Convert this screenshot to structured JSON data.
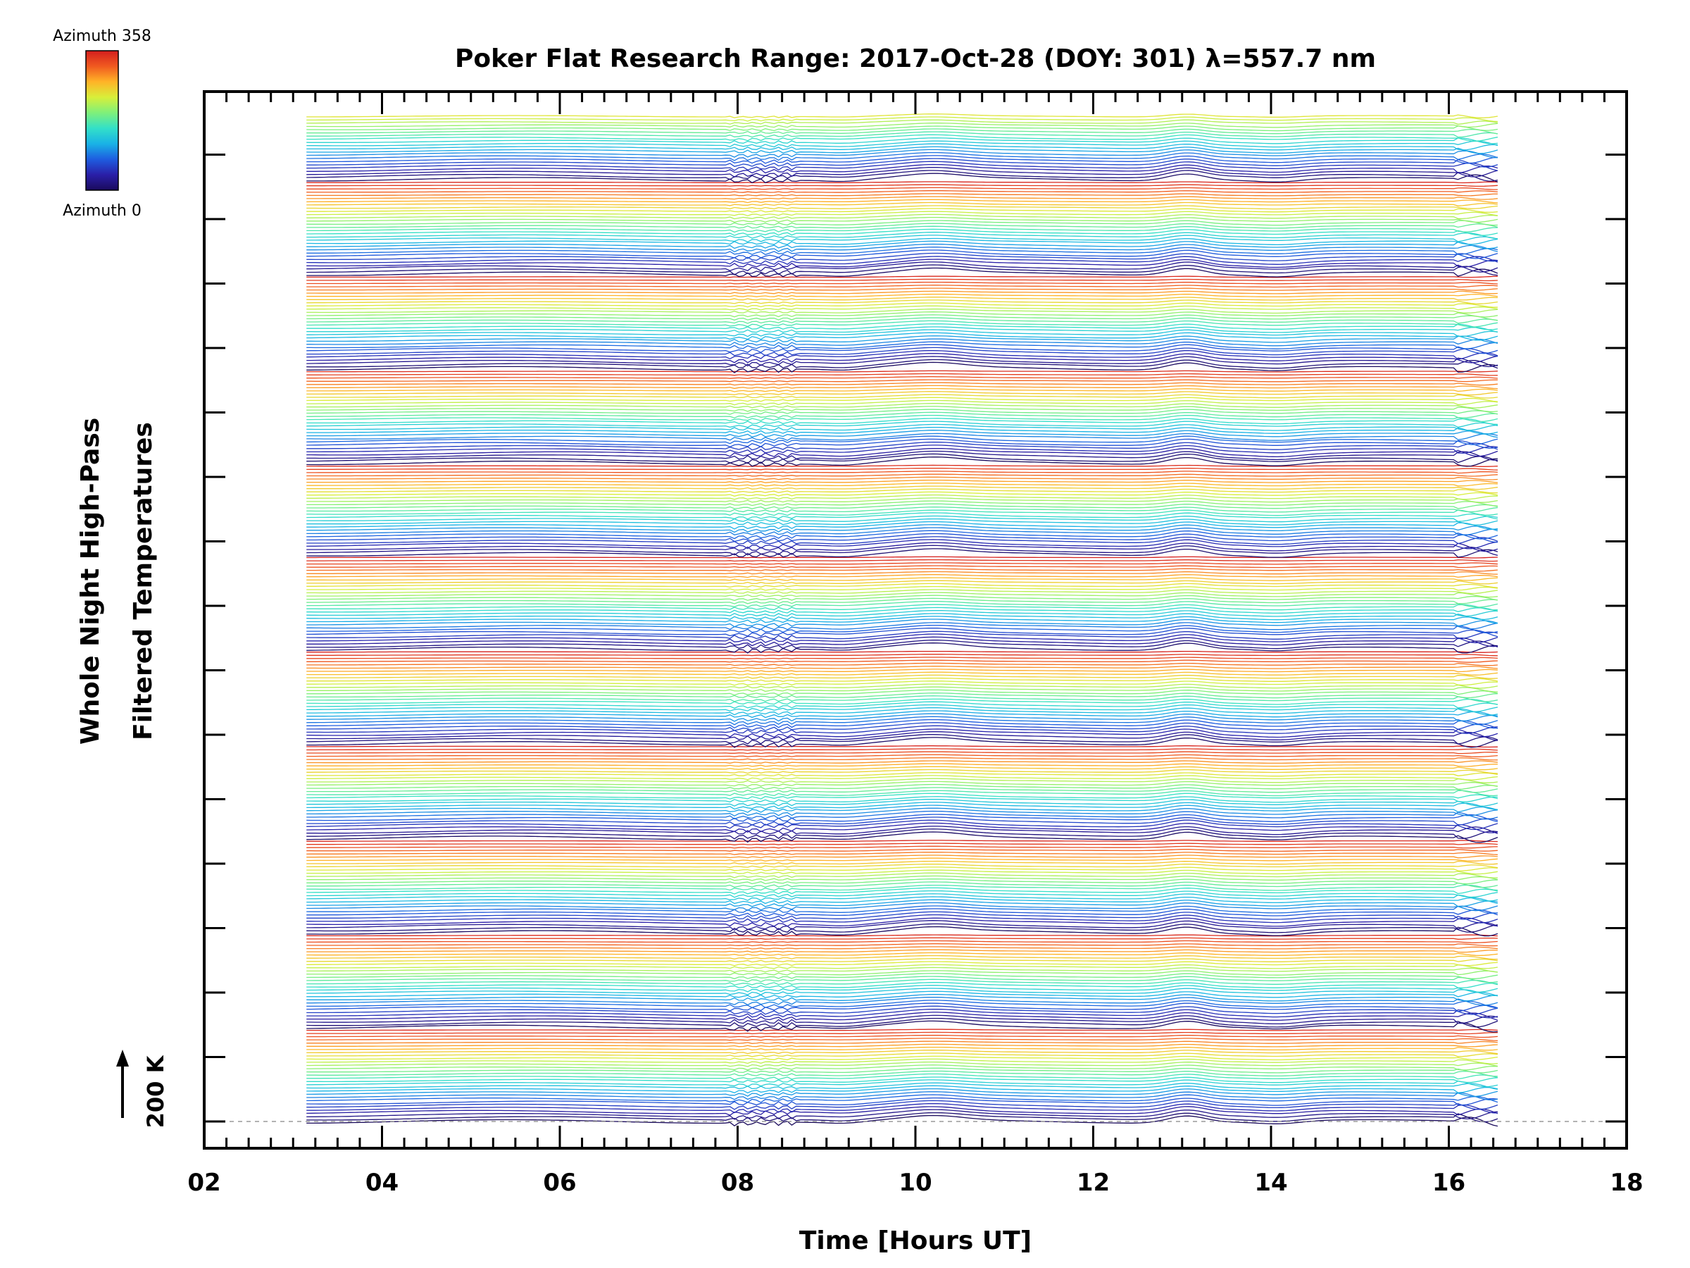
{
  "chart_data": {
    "type": "line",
    "title": "Poker Flat Research Range: 2017-Oct-28 (DOY: 301) λ=557.7 nm",
    "xlabel": "Time [Hours UT]",
    "ylabel_line1": "Whole Night High-Pass",
    "ylabel_line2": "Filtered Temperatures",
    "xlim": [
      2,
      18
    ],
    "x_tick_labels": [
      "02",
      "04",
      "06",
      "08",
      "10",
      "12",
      "14",
      "16",
      "18"
    ],
    "x_tick_values": [
      2,
      4,
      6,
      8,
      10,
      12,
      14,
      16,
      18
    ],
    "data_time_range": [
      3.15,
      16.55
    ],
    "series_count": 320,
    "azimuth_range": [
      0,
      358
    ],
    "colorbar": {
      "top_label": "Azimuth 358",
      "bottom_label": "Azimuth 0",
      "colormap": [
        "#1a0a5c",
        "#2a1fa8",
        "#1e5de0",
        "#19b3e6",
        "#33e0c8",
        "#7ff07a",
        "#d8ef3a",
        "#ffb327",
        "#f05a20",
        "#d41e1e"
      ]
    },
    "scale_bar_label": "200 K",
    "grid": false,
    "colors": {
      "axes": "#000000",
      "baseline": "#9a9a9a"
    }
  }
}
